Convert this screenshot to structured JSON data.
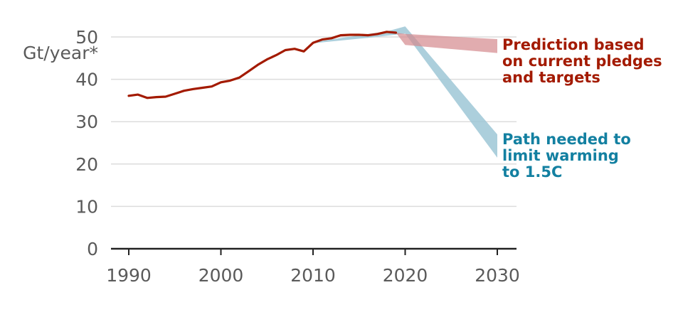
{
  "chart_data": {
    "type": "line",
    "title": "",
    "xlabel": "",
    "ylabel": "Gt/year*",
    "xlim": [
      1990,
      2030
    ],
    "ylim": [
      0,
      50
    ],
    "x_ticks": [
      "1990",
      "2000",
      "2010",
      "2020",
      "2030"
    ],
    "y_ticks": [
      "0",
      "10",
      "20",
      "30",
      "40",
      "50"
    ],
    "grid": true,
    "colors": {
      "historical": "#a31a00",
      "pledges_band": "#d4898d",
      "path_band": "#9ec7d6",
      "pledges_text": "#a31a00",
      "path_text": "#1380a1",
      "grid": "#dcdcdc",
      "axis": "#222222"
    },
    "series": [
      {
        "type": "line",
        "x": [
          1990,
          1991,
          1992,
          1993,
          1994,
          1995,
          1996,
          1997,
          1998,
          1999,
          2000,
          2001,
          2002,
          2003,
          2004,
          2005,
          2006,
          2007,
          2008,
          2009,
          2010,
          2011,
          2012,
          2013,
          2014,
          2015,
          2016,
          2017,
          2018,
          2019
        ],
        "y": [
          36.1,
          36.4,
          35.6,
          35.8,
          35.9,
          36.6,
          37.3,
          37.7,
          38.0,
          38.3,
          39.3,
          39.7,
          40.4,
          41.9,
          43.4,
          44.7,
          45.7,
          46.9,
          47.2,
          46.6,
          48.6,
          49.4,
          49.7,
          50.4,
          50.5,
          50.5,
          50.4,
          50.7,
          51.2,
          51.0
        ]
      },
      {
        "type": "band",
        "x": [
          2010,
          2016,
          2018,
          2020,
          2030
        ],
        "upper": [
          48.8,
          50.7,
          51.3,
          52.5,
          27.0
        ],
        "lower": [
          48.5,
          49.8,
          50.3,
          50.8,
          21.5
        ]
      },
      {
        "type": "band",
        "x": [
          2019,
          2020,
          2030
        ],
        "upper": [
          51.0,
          50.7,
          49.5
        ],
        "lower": [
          51.0,
          48.1,
          46.2
        ]
      }
    ],
    "annotations": [
      {
        "lines": [
          "Prediction based",
          "on current pledges",
          "and targets"
        ]
      },
      {
        "lines": [
          "Path needed to",
          "limit warming",
          "to 1.5C"
        ]
      }
    ]
  }
}
